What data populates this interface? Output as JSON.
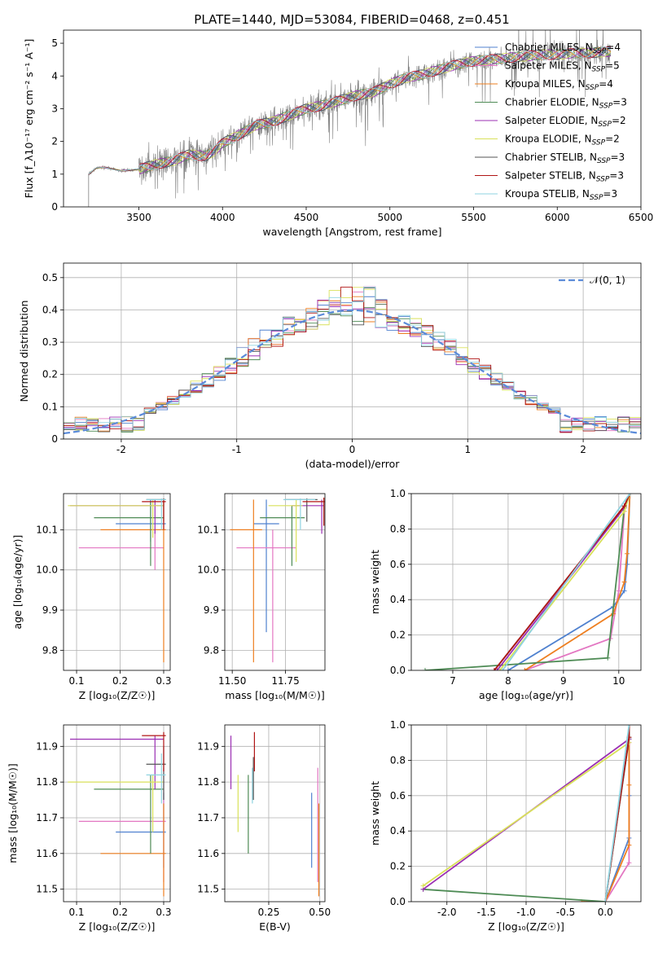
{
  "figure_title": "PLATE=1440, MJD=53084, FIBERID=0468, z=0.451",
  "colors": {
    "Chabrier MILES": "#4f81cf",
    "Salpeter MILES": "#e377c2",
    "Kroupa MILES": "#ee7f20",
    "Chabrier ELODIE": "#4e8b55",
    "Salpeter ELODIE": "#9b2fb3",
    "Kroupa ELODIE": "#d9e15a",
    "Chabrier STELIB": "#555555",
    "Salpeter STELIB": "#b01515",
    "Kroupa STELIB": "#8fd3e0",
    "normal": "#5b8bd9",
    "data": "#808080"
  },
  "legend_main": [
    {
      "name": "Chabrier MILES",
      "nssp": "4"
    },
    {
      "name": "Salpeter MILES",
      "nssp": "5"
    },
    {
      "name": "Kroupa MILES",
      "nssp": "4"
    },
    {
      "name": "Chabrier ELODIE",
      "nssp": "3"
    },
    {
      "name": "Salpeter ELODIE",
      "nssp": "2"
    },
    {
      "name": "Kroupa ELODIE",
      "nssp": "2"
    },
    {
      "name": "Chabrier STELIB",
      "nssp": "3"
    },
    {
      "name": "Salpeter STELIB",
      "nssp": "3"
    },
    {
      "name": "Kroupa STELIB",
      "nssp": "3"
    }
  ],
  "chart_data": [
    {
      "id": "spectrum",
      "type": "line",
      "xlabel": "wavelength [Angstrom, rest frame]",
      "ylabel": "Flux [f_λ10⁻¹⁷ erg cm⁻² s⁻¹ A⁻¹]",
      "xlim": [
        3050,
        6500
      ],
      "ylim": [
        0,
        5.4
      ],
      "xticks": [
        3500,
        4000,
        4500,
        5000,
        5500,
        6000,
        6500
      ],
      "yticks": [
        0,
        1,
        2,
        3,
        4,
        5
      ],
      "continuum": {
        "x": [
          3200,
          3250,
          3300,
          3400,
          3500,
          3600,
          3700,
          3800,
          3900,
          3950,
          4000,
          4100,
          4200,
          4300,
          4400,
          4500,
          4600,
          4700,
          4800,
          4900,
          5000,
          5100,
          5200,
          5300,
          5400,
          5500,
          5600,
          5700,
          5800,
          5900,
          6000,
          6100,
          6200,
          6320
        ],
        "y": [
          1.0,
          1.2,
          1.2,
          1.1,
          1.15,
          1.3,
          1.4,
          1.6,
          1.55,
          1.7,
          1.95,
          2.2,
          2.5,
          2.6,
          2.8,
          3.0,
          3.1,
          3.25,
          3.4,
          3.5,
          3.75,
          3.95,
          4.05,
          4.2,
          4.35,
          4.45,
          4.5,
          4.55,
          4.6,
          4.65,
          4.65,
          4.7,
          4.7,
          4.75
        ]
      }
    },
    {
      "id": "residuals",
      "type": "histogram",
      "xlabel": "(data-model)/error",
      "ylabel": "Normed distribution",
      "xlim": [
        -2.5,
        2.5
      ],
      "ylim": [
        0,
        0.545
      ],
      "xticks": [
        -2,
        -1,
        0,
        1,
        2
      ],
      "yticks": [
        0,
        0.1,
        0.2,
        0.3,
        0.4,
        0.5
      ],
      "normal_label": "𝒩(0, 1)",
      "bin_width": 0.1
    },
    {
      "id": "age_vs_Z",
      "type": "errorbar",
      "xlabel": "Z [log₁₀(Z/Z☉)]",
      "ylabel": "age  [log₁₀(age/yr)]",
      "xlim": [
        0.07,
        0.315
      ],
      "ylim": [
        9.75,
        10.19
      ],
      "xticks": [
        0.1,
        0.2,
        0.3
      ],
      "yticks": [
        9.8,
        9.9,
        10.0,
        10.1
      ],
      "points": [
        {
          "model": "Chabrier MILES",
          "x": 0.27,
          "xlo": 0.19,
          "xhi": 0.305,
          "y": 10.115,
          "ylo": 10.07,
          "yhi": 10.175
        },
        {
          "model": "Salpeter MILES",
          "x": 0.28,
          "xlo": 0.105,
          "xhi": 0.3,
          "y": 10.055,
          "ylo": 10.0,
          "yhi": 10.1
        },
        {
          "model": "Kroupa MILES",
          "x": 0.3,
          "xlo": 0.155,
          "xhi": 0.305,
          "y": 10.1,
          "ylo": 9.77,
          "yhi": 10.17
        },
        {
          "model": "Chabrier ELODIE",
          "x": 0.27,
          "xlo": 0.14,
          "xhi": 0.3,
          "y": 10.13,
          "ylo": 10.01,
          "yhi": 10.17
        },
        {
          "model": "Salpeter ELODIE",
          "x": 0.28,
          "xlo": 0.085,
          "xhi": 0.3,
          "y": 10.16,
          "ylo": 10.09,
          "yhi": 10.175
        },
        {
          "model": "Kroupa ELODIE",
          "x": 0.275,
          "xlo": 0.08,
          "xhi": 0.3,
          "y": 10.16,
          "ylo": 10.08,
          "yhi": 10.175
        },
        {
          "model": "Chabrier STELIB",
          "x": 0.3,
          "xlo": 0.26,
          "xhi": 0.305,
          "y": 10.175,
          "ylo": 10.12,
          "yhi": 10.178
        },
        {
          "model": "Salpeter STELIB",
          "x": 0.3,
          "xlo": 0.25,
          "xhi": 0.305,
          "y": 10.17,
          "ylo": 10.1,
          "yhi": 10.177
        },
        {
          "model": "Kroupa STELIB",
          "x": 0.295,
          "xlo": 0.26,
          "xhi": 0.305,
          "y": 10.175,
          "ylo": 10.1,
          "yhi": 10.178
        }
      ]
    },
    {
      "id": "age_vs_mass",
      "type": "errorbar",
      "xlabel": "mass [log₁₀(M/M☉)]",
      "ylabel": "",
      "xlim": [
        11.465,
        11.935
      ],
      "ylim": [
        9.75,
        10.19
      ],
      "xticks": [
        11.5,
        11.75
      ],
      "yticks": [
        9.8,
        9.9,
        10.0,
        10.1
      ],
      "points": [
        {
          "model": "Chabrier MILES",
          "x": 11.66,
          "xlo": 11.6,
          "xhi": 11.72,
          "y": 10.115,
          "ylo": 9.845,
          "yhi": 10.175
        },
        {
          "model": "Salpeter MILES",
          "x": 11.69,
          "xlo": 11.52,
          "xhi": 11.8,
          "y": 10.055,
          "ylo": 9.77,
          "yhi": 10.1
        },
        {
          "model": "Kroupa MILES",
          "x": 11.6,
          "xlo": 11.49,
          "xhi": 11.64,
          "y": 10.1,
          "ylo": 9.77,
          "yhi": 10.175
        },
        {
          "model": "Chabrier ELODIE",
          "x": 11.78,
          "xlo": 11.63,
          "xhi": 11.84,
          "y": 10.13,
          "ylo": 10.01,
          "yhi": 10.16
        },
        {
          "model": "Salpeter ELODIE",
          "x": 11.92,
          "xlo": 11.78,
          "xhi": 11.93,
          "y": 10.16,
          "ylo": 10.09,
          "yhi": 10.175
        },
        {
          "model": "Kroupa ELODIE",
          "x": 11.8,
          "xlo": 11.67,
          "xhi": 11.83,
          "y": 10.16,
          "ylo": 10.02,
          "yhi": 10.175
        },
        {
          "model": "Chabrier STELIB",
          "x": 11.85,
          "xlo": 11.75,
          "xhi": 11.9,
          "y": 10.175,
          "ylo": 10.12,
          "yhi": 10.178
        },
        {
          "model": "Salpeter STELIB",
          "x": 11.93,
          "xlo": 11.83,
          "xhi": 11.935,
          "y": 10.17,
          "ylo": 10.11,
          "yhi": 10.18
        },
        {
          "model": "Kroupa STELIB",
          "x": 11.82,
          "xlo": 11.74,
          "xhi": 11.89,
          "y": 10.175,
          "ylo": 10.1,
          "yhi": 10.178
        }
      ]
    },
    {
      "id": "cumulative_mass_age",
      "type": "line",
      "xlabel": "age  [log₁₀(age/yr)]",
      "ylabel": "mass weight",
      "xlim": [
        6.25,
        10.4
      ],
      "ylim": [
        0,
        1.0
      ],
      "xticks": [
        7,
        8,
        9,
        10
      ],
      "yticks": [
        0,
        0.2,
        0.4,
        0.6,
        0.8,
        1.0
      ],
      "series": [
        {
          "name": "Chabrier MILES",
          "x": [
            8.0,
            9.9,
            10.1,
            10.15,
            10.2
          ],
          "y": [
            0.0,
            0.36,
            0.45,
            0.6,
            1.0
          ]
        },
        {
          "name": "Salpeter MILES",
          "x": [
            8.3,
            9.85,
            10.0,
            10.1
          ],
          "y": [
            0.0,
            0.18,
            0.45,
            0.9
          ]
        },
        {
          "name": "Kroupa MILES",
          "x": [
            8.3,
            9.9,
            10.1,
            10.15,
            10.2
          ],
          "y": [
            0.0,
            0.32,
            0.5,
            0.66,
            1.0
          ]
        },
        {
          "name": "Chabrier ELODIE",
          "x": [
            6.5,
            9.8,
            10.1,
            10.2
          ],
          "y": [
            0.0,
            0.07,
            0.92,
            1.0
          ]
        },
        {
          "name": "Salpeter ELODIE",
          "x": [
            7.8,
            10.1,
            10.2
          ],
          "y": [
            0.0,
            0.92,
            1.0
          ]
        },
        {
          "name": "Kroupa ELODIE",
          "x": [
            7.85,
            10.1,
            10.2
          ],
          "y": [
            0.0,
            0.9,
            1.0
          ]
        },
        {
          "name": "Chabrier STELIB",
          "x": [
            7.75,
            10.1,
            10.2
          ],
          "y": [
            0.0,
            0.93,
            1.0
          ]
        },
        {
          "name": "Salpeter STELIB",
          "x": [
            7.75,
            10.1,
            10.2
          ],
          "y": [
            0.0,
            0.93,
            1.0
          ]
        },
        {
          "name": "Kroupa STELIB",
          "x": [
            7.9,
            10.2
          ],
          "y": [
            0.0,
            1.0
          ]
        }
      ]
    },
    {
      "id": "mass_vs_Z",
      "type": "errorbar",
      "xlabel": "Z [log₁₀(Z/Z☉)]",
      "ylabel": "mass [log₁₀(M/M☉)]",
      "xlim": [
        0.07,
        0.315
      ],
      "ylim": [
        11.465,
        11.96
      ],
      "xticks": [
        0.1,
        0.2,
        0.3
      ],
      "yticks": [
        11.5,
        11.6,
        11.7,
        11.8,
        11.9
      ],
      "points": [
        {
          "model": "Chabrier MILES",
          "x": 0.3,
          "xlo": 0.19,
          "xhi": 0.305,
          "y": 11.66,
          "ylo": 11.56,
          "yhi": 11.77
        },
        {
          "model": "Salpeter MILES",
          "x": 0.3,
          "xlo": 0.105,
          "xhi": 0.305,
          "y": 11.69,
          "ylo": 11.52,
          "yhi": 11.84
        },
        {
          "model": "Kroupa MILES",
          "x": 0.3,
          "xlo": 0.155,
          "xhi": 0.305,
          "y": 11.6,
          "ylo": 11.48,
          "yhi": 11.74
        },
        {
          "model": "Chabrier ELODIE",
          "x": 0.27,
          "xlo": 0.14,
          "xhi": 0.3,
          "y": 11.78,
          "ylo": 11.6,
          "yhi": 11.82
        },
        {
          "model": "Salpeter ELODIE",
          "x": 0.28,
          "xlo": 0.085,
          "xhi": 0.3,
          "y": 11.92,
          "ylo": 11.78,
          "yhi": 11.93
        },
        {
          "model": "Kroupa ELODIE",
          "x": 0.275,
          "xlo": 0.08,
          "xhi": 0.3,
          "y": 11.8,
          "ylo": 11.66,
          "yhi": 11.82
        },
        {
          "model": "Chabrier STELIB",
          "x": 0.3,
          "xlo": 0.26,
          "xhi": 0.305,
          "y": 11.85,
          "ylo": 11.75,
          "yhi": 11.9
        },
        {
          "model": "Salpeter STELIB",
          "x": 0.3,
          "xlo": 0.25,
          "xhi": 0.305,
          "y": 11.93,
          "ylo": 11.83,
          "yhi": 11.94
        },
        {
          "model": "Kroupa STELIB",
          "x": 0.295,
          "xlo": 0.26,
          "xhi": 0.305,
          "y": 11.82,
          "ylo": 11.74,
          "yhi": 11.88
        }
      ]
    },
    {
      "id": "mass_vs_EBV",
      "type": "errorbar",
      "xlabel": "E(B-V)",
      "ylabel": "",
      "xlim": [
        0.035,
        0.525
      ],
      "ylim": [
        11.465,
        11.96
      ],
      "xticks": [
        0.25,
        0.5
      ],
      "yticks": [
        11.5,
        11.6,
        11.7,
        11.8,
        11.9
      ],
      "points": [
        {
          "model": "Chabrier MILES",
          "x": 0.46,
          "y": 11.66,
          "ylo": 11.56,
          "yhi": 11.77
        },
        {
          "model": "Salpeter MILES",
          "x": 0.49,
          "y": 11.69,
          "ylo": 11.52,
          "yhi": 11.84
        },
        {
          "model": "Kroupa MILES",
          "x": 0.495,
          "y": 11.6,
          "ylo": 11.48,
          "yhi": 11.74
        },
        {
          "model": "Chabrier ELODIE",
          "x": 0.15,
          "y": 11.7,
          "ylo": 11.6,
          "yhi": 11.82
        },
        {
          "model": "Salpeter ELODIE",
          "x": 0.065,
          "y": 11.85,
          "ylo": 11.78,
          "yhi": 11.93
        },
        {
          "model": "Kroupa ELODIE",
          "x": 0.1,
          "y": 11.75,
          "ylo": 11.66,
          "yhi": 11.82
        },
        {
          "model": "Chabrier STELIB",
          "x": 0.175,
          "y": 11.82,
          "ylo": 11.75,
          "yhi": 11.87
        },
        {
          "model": "Salpeter STELIB",
          "x": 0.18,
          "y": 11.9,
          "ylo": 11.83,
          "yhi": 11.94
        },
        {
          "model": "Kroupa STELIB",
          "x": 0.17,
          "y": 11.79,
          "ylo": 11.74,
          "yhi": 11.84
        }
      ]
    },
    {
      "id": "cumulative_mass_Z",
      "type": "line",
      "xlabel": "Z [log₁₀(Z/Z☉)]",
      "ylabel": "mass weight",
      "xlim": [
        -2.45,
        0.45
      ],
      "ylim": [
        0,
        1.0
      ],
      "xticks": [
        -2.0,
        -1.5,
        -1.0,
        -0.5,
        0.0
      ],
      "yticks": [
        0,
        0.2,
        0.4,
        0.6,
        0.8,
        1.0
      ],
      "series": [
        {
          "name": "Chabrier MILES",
          "x": [
            0.0,
            0.3,
            0.3,
            0.3
          ],
          "y": [
            0.0,
            0.36,
            0.6,
            1.0
          ]
        },
        {
          "name": "Salpeter MILES",
          "x": [
            0.0,
            0.3,
            0.3
          ],
          "y": [
            0.0,
            0.22,
            0.9
          ]
        },
        {
          "name": "Kroupa MILES",
          "x": [
            -0.3,
            0.0,
            0.3,
            0.3,
            0.3
          ],
          "y": [
            0.0,
            0.0,
            0.32,
            0.66,
            1.0
          ]
        },
        {
          "name": "Chabrier ELODIE",
          "x": [
            -2.3,
            0.0,
            0.3,
            0.3
          ],
          "y": [
            0.07,
            0.0,
            0.92,
            1.0
          ]
        },
        {
          "name": "Salpeter ELODIE",
          "x": [
            -2.3,
            0.3,
            0.3
          ],
          "y": [
            0.07,
            0.92,
            1.0
          ]
        },
        {
          "name": "Kroupa ELODIE",
          "x": [
            -2.3,
            0.3,
            0.3
          ],
          "y": [
            0.09,
            0.9,
            1.0
          ]
        },
        {
          "name": "Chabrier STELIB",
          "x": [
            0.0,
            0.3,
            0.3
          ],
          "y": [
            0.0,
            0.93,
            1.0
          ]
        },
        {
          "name": "Salpeter STELIB",
          "x": [
            0.0,
            0.3,
            0.3
          ],
          "y": [
            0.0,
            0.93,
            1.0
          ]
        },
        {
          "name": "Kroupa STELIB",
          "x": [
            0.0,
            0.3
          ],
          "y": [
            0.0,
            1.0
          ]
        }
      ]
    }
  ]
}
